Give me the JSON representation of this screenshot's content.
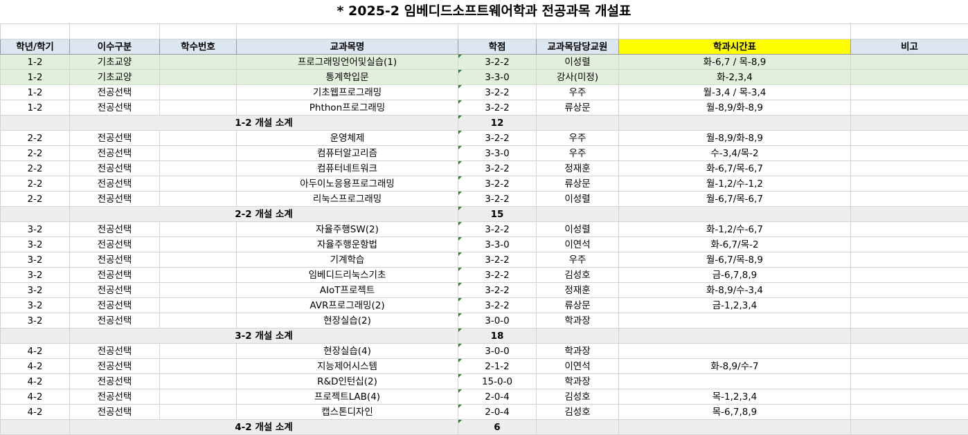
{
  "title": "* 2025-2 임베디드소프트웨어학과 전공과목 개설표",
  "headers": {
    "year_term": "학년/학기",
    "category": "이수구분",
    "course_no": "학수번호",
    "course_name": "교과목명",
    "credits": "학점",
    "instructor": "교과목담당교원",
    "timetable": "학과시간표",
    "note": "비고"
  },
  "colors": {
    "header_bg": "#dce6f1",
    "timetable_header_bg": "#ffff00",
    "general_row_bg": "#e2efda",
    "subtotal_bg": "#ededed"
  },
  "groups": [
    {
      "rows": [
        {
          "yt": "1-2",
          "cat": "기초교양",
          "no": "",
          "name": "프로그래밍언어및실습(1)",
          "credit": "3-2-2",
          "prof": "이성렬",
          "time": "화-6,7 / 목-8,9",
          "note": ""
        },
        {
          "yt": "1-2",
          "cat": "기초교양",
          "no": "",
          "name": "통계학입문",
          "credit": "3-3-0",
          "prof": "강사(미정)",
          "time": "화-2,3,4",
          "note": ""
        },
        {
          "yt": "1-2",
          "cat": "전공선택",
          "no": "",
          "name": "기초웹프로그래밍",
          "credit": "3-2-2",
          "prof": "우주",
          "time": "월-3,4 / 목-3,4",
          "note": ""
        },
        {
          "yt": "1-2",
          "cat": "전공선택",
          "no": "",
          "name": "Phthon프로그래밍",
          "credit": "3-2-2",
          "prof": "류상문",
          "time": "월-8,9/화-8,9",
          "note": ""
        }
      ],
      "subtotal_label": "1-2 개설 소계",
      "subtotal_value": "12"
    },
    {
      "rows": [
        {
          "yt": "2-2",
          "cat": "전공선택",
          "no": "",
          "name": "운영체제",
          "credit": "3-2-2",
          "prof": "우주",
          "time": "월-8,9/화-8,9",
          "note": ""
        },
        {
          "yt": "2-2",
          "cat": "전공선택",
          "no": "",
          "name": "컴퓨터알고리즘",
          "credit": "3-3-0",
          "prof": "우주",
          "time": "수-3,4/목-2",
          "note": ""
        },
        {
          "yt": "2-2",
          "cat": "전공선택",
          "no": "",
          "name": "컴퓨터네트워크",
          "credit": "3-2-2",
          "prof": "정재훈",
          "time": "화-6,7/목-6,7",
          "note": ""
        },
        {
          "yt": "2-2",
          "cat": "전공선택",
          "no": "",
          "name": "아두이노응용프로그래밍",
          "credit": "3-2-2",
          "prof": "류상문",
          "time": "월-1,2/수-1,2",
          "note": ""
        },
        {
          "yt": "2-2",
          "cat": "전공선택",
          "no": "",
          "name": "리눅스프로그래밍",
          "credit": "3-2-2",
          "prof": "이성렬",
          "time": "월-6,7/목-6,7",
          "note": ""
        }
      ],
      "subtotal_label": "2-2 개설 소계",
      "subtotal_value": "15"
    },
    {
      "rows": [
        {
          "yt": "3-2",
          "cat": "전공선택",
          "no": "",
          "name": "자율주행SW(2)",
          "credit": "3-2-2",
          "prof": "이성렬",
          "time": "화-1,2/수-6,7",
          "note": ""
        },
        {
          "yt": "3-2",
          "cat": "전공선택",
          "no": "",
          "name": "자율주행운항법",
          "credit": "3-3-0",
          "prof": "이연석",
          "time": "화-6,7/목-2",
          "note": ""
        },
        {
          "yt": "3-2",
          "cat": "전공선택",
          "no": "",
          "name": "기계학습",
          "credit": "3-2-2",
          "prof": "우주",
          "time": "월-6,7/목-8,9",
          "note": ""
        },
        {
          "yt": "3-2",
          "cat": "전공선택",
          "no": "",
          "name": "임베디드리눅스기초",
          "credit": "3-2-2",
          "prof": "김성호",
          "time": "금-6,7,8,9",
          "note": ""
        },
        {
          "yt": "3-2",
          "cat": "전공선택",
          "no": "",
          "name": "AIoT프로젝트",
          "credit": "3-2-2",
          "prof": "정재훈",
          "time": "화-8,9/수-3,4",
          "note": ""
        },
        {
          "yt": "3-2",
          "cat": "전공선택",
          "no": "",
          "name": "AVR프로그래밍(2)",
          "credit": "3-2-2",
          "prof": "류상문",
          "time": "금-1,2,3,4",
          "note": ""
        },
        {
          "yt": "3-2",
          "cat": "전공선택",
          "no": "",
          "name": "현장실습(2)",
          "credit": "3-0-0",
          "prof": "학과장",
          "time": "",
          "note": ""
        }
      ],
      "subtotal_label": "3-2 개설 소계",
      "subtotal_value": "18"
    },
    {
      "rows": [
        {
          "yt": "4-2",
          "cat": "전공선택",
          "no": "",
          "name": "현장실습(4)",
          "credit": "3-0-0",
          "prof": "학과장",
          "time": "",
          "note": ""
        },
        {
          "yt": "4-2",
          "cat": "전공선택",
          "no": "",
          "name": "지능제어시스템",
          "credit": "2-1-2",
          "prof": "이연석",
          "time": "화-8,9/수-7",
          "note": ""
        },
        {
          "yt": "4-2",
          "cat": "전공선택",
          "no": "",
          "name": "R&D인턴십(2)",
          "credit": "15-0-0",
          "prof": "학과장",
          "time": "",
          "note": ""
        },
        {
          "yt": "4-2",
          "cat": "전공선택",
          "no": "",
          "name": "프로젝트LAB(4)",
          "credit": "2-0-4",
          "prof": "김성호",
          "time": "목-1,2,3,4",
          "note": ""
        },
        {
          "yt": "4-2",
          "cat": "전공선택",
          "no": "",
          "name": "캡스톤디자인",
          "credit": "2-0-4",
          "prof": "김성호",
          "time": "목-6,7,8,9",
          "note": ""
        }
      ],
      "subtotal_label": "4-2 개설 소계",
      "subtotal_value": "6"
    }
  ]
}
